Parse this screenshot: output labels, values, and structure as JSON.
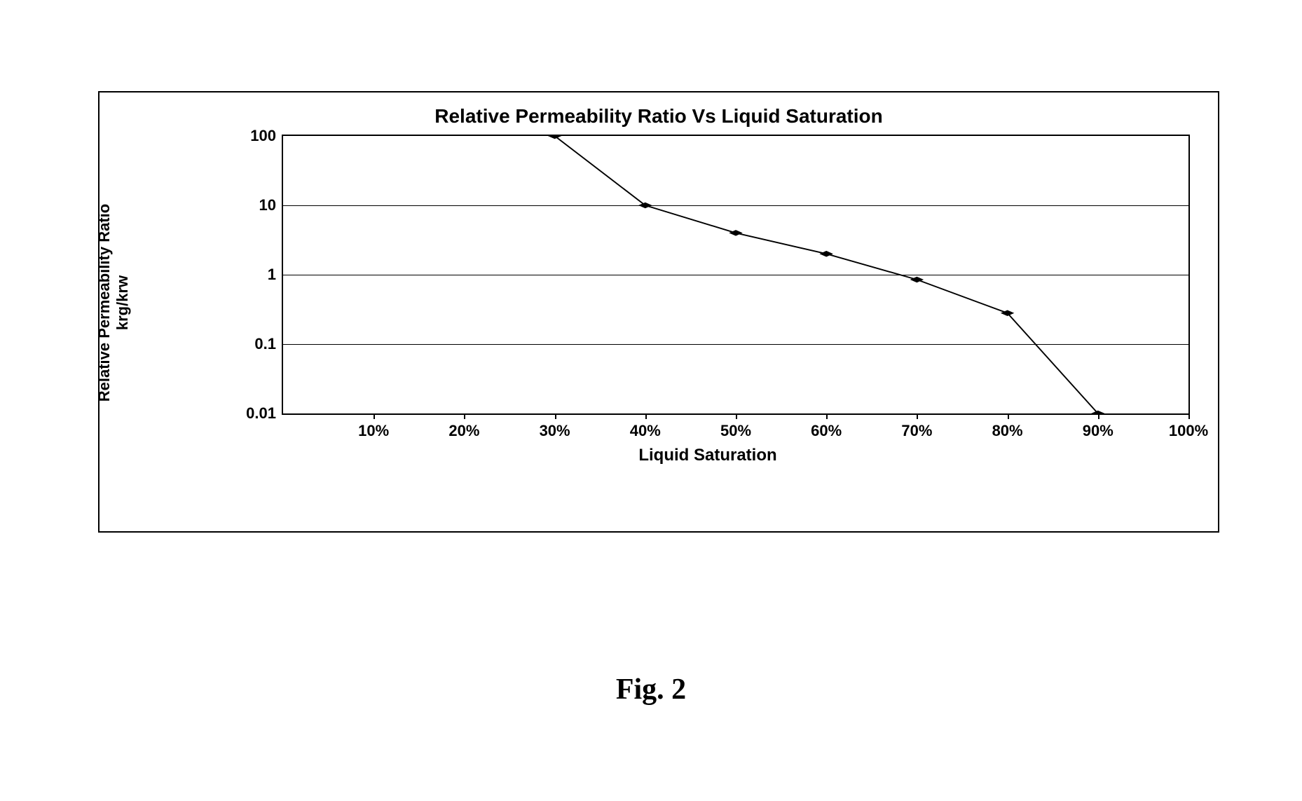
{
  "chart": {
    "type": "line",
    "title": "Relative Permeability Ratio Vs Liquid Saturation",
    "x_axis_label": "Liquid Saturation",
    "y_axis_label_line1": "Relative Permeability Ratio",
    "y_axis_label_line2": "krg/krw",
    "x_min": 0,
    "x_max": 100,
    "x_ticks": [
      10,
      20,
      30,
      40,
      50,
      60,
      70,
      80,
      90,
      100
    ],
    "x_tick_labels": [
      "10%",
      "20%",
      "30%",
      "40%",
      "50%",
      "60%",
      "70%",
      "80%",
      "90%",
      "100%"
    ],
    "y_scale": "log",
    "y_min": 0.01,
    "y_max": 100,
    "y_ticks": [
      0.01,
      0.1,
      1,
      10,
      100
    ],
    "y_tick_labels": [
      "0.01",
      "0.1",
      "1",
      "10",
      "100"
    ],
    "series": {
      "x": [
        30,
        40,
        50,
        60,
        70,
        80,
        90
      ],
      "y": [
        100,
        10,
        4,
        2,
        0.85,
        0.28,
        0.01
      ]
    },
    "line_color": "#000000",
    "line_width": 2.5,
    "marker_shape": "diamond",
    "marker_size": 14,
    "marker_color": "#000000",
    "background_color": "#ffffff",
    "grid_color": "#000000",
    "axis_font_size": 22,
    "title_font_size": 28,
    "label_font_size": 24,
    "font_weight": "bold"
  },
  "figure_caption": "Fig. 2"
}
